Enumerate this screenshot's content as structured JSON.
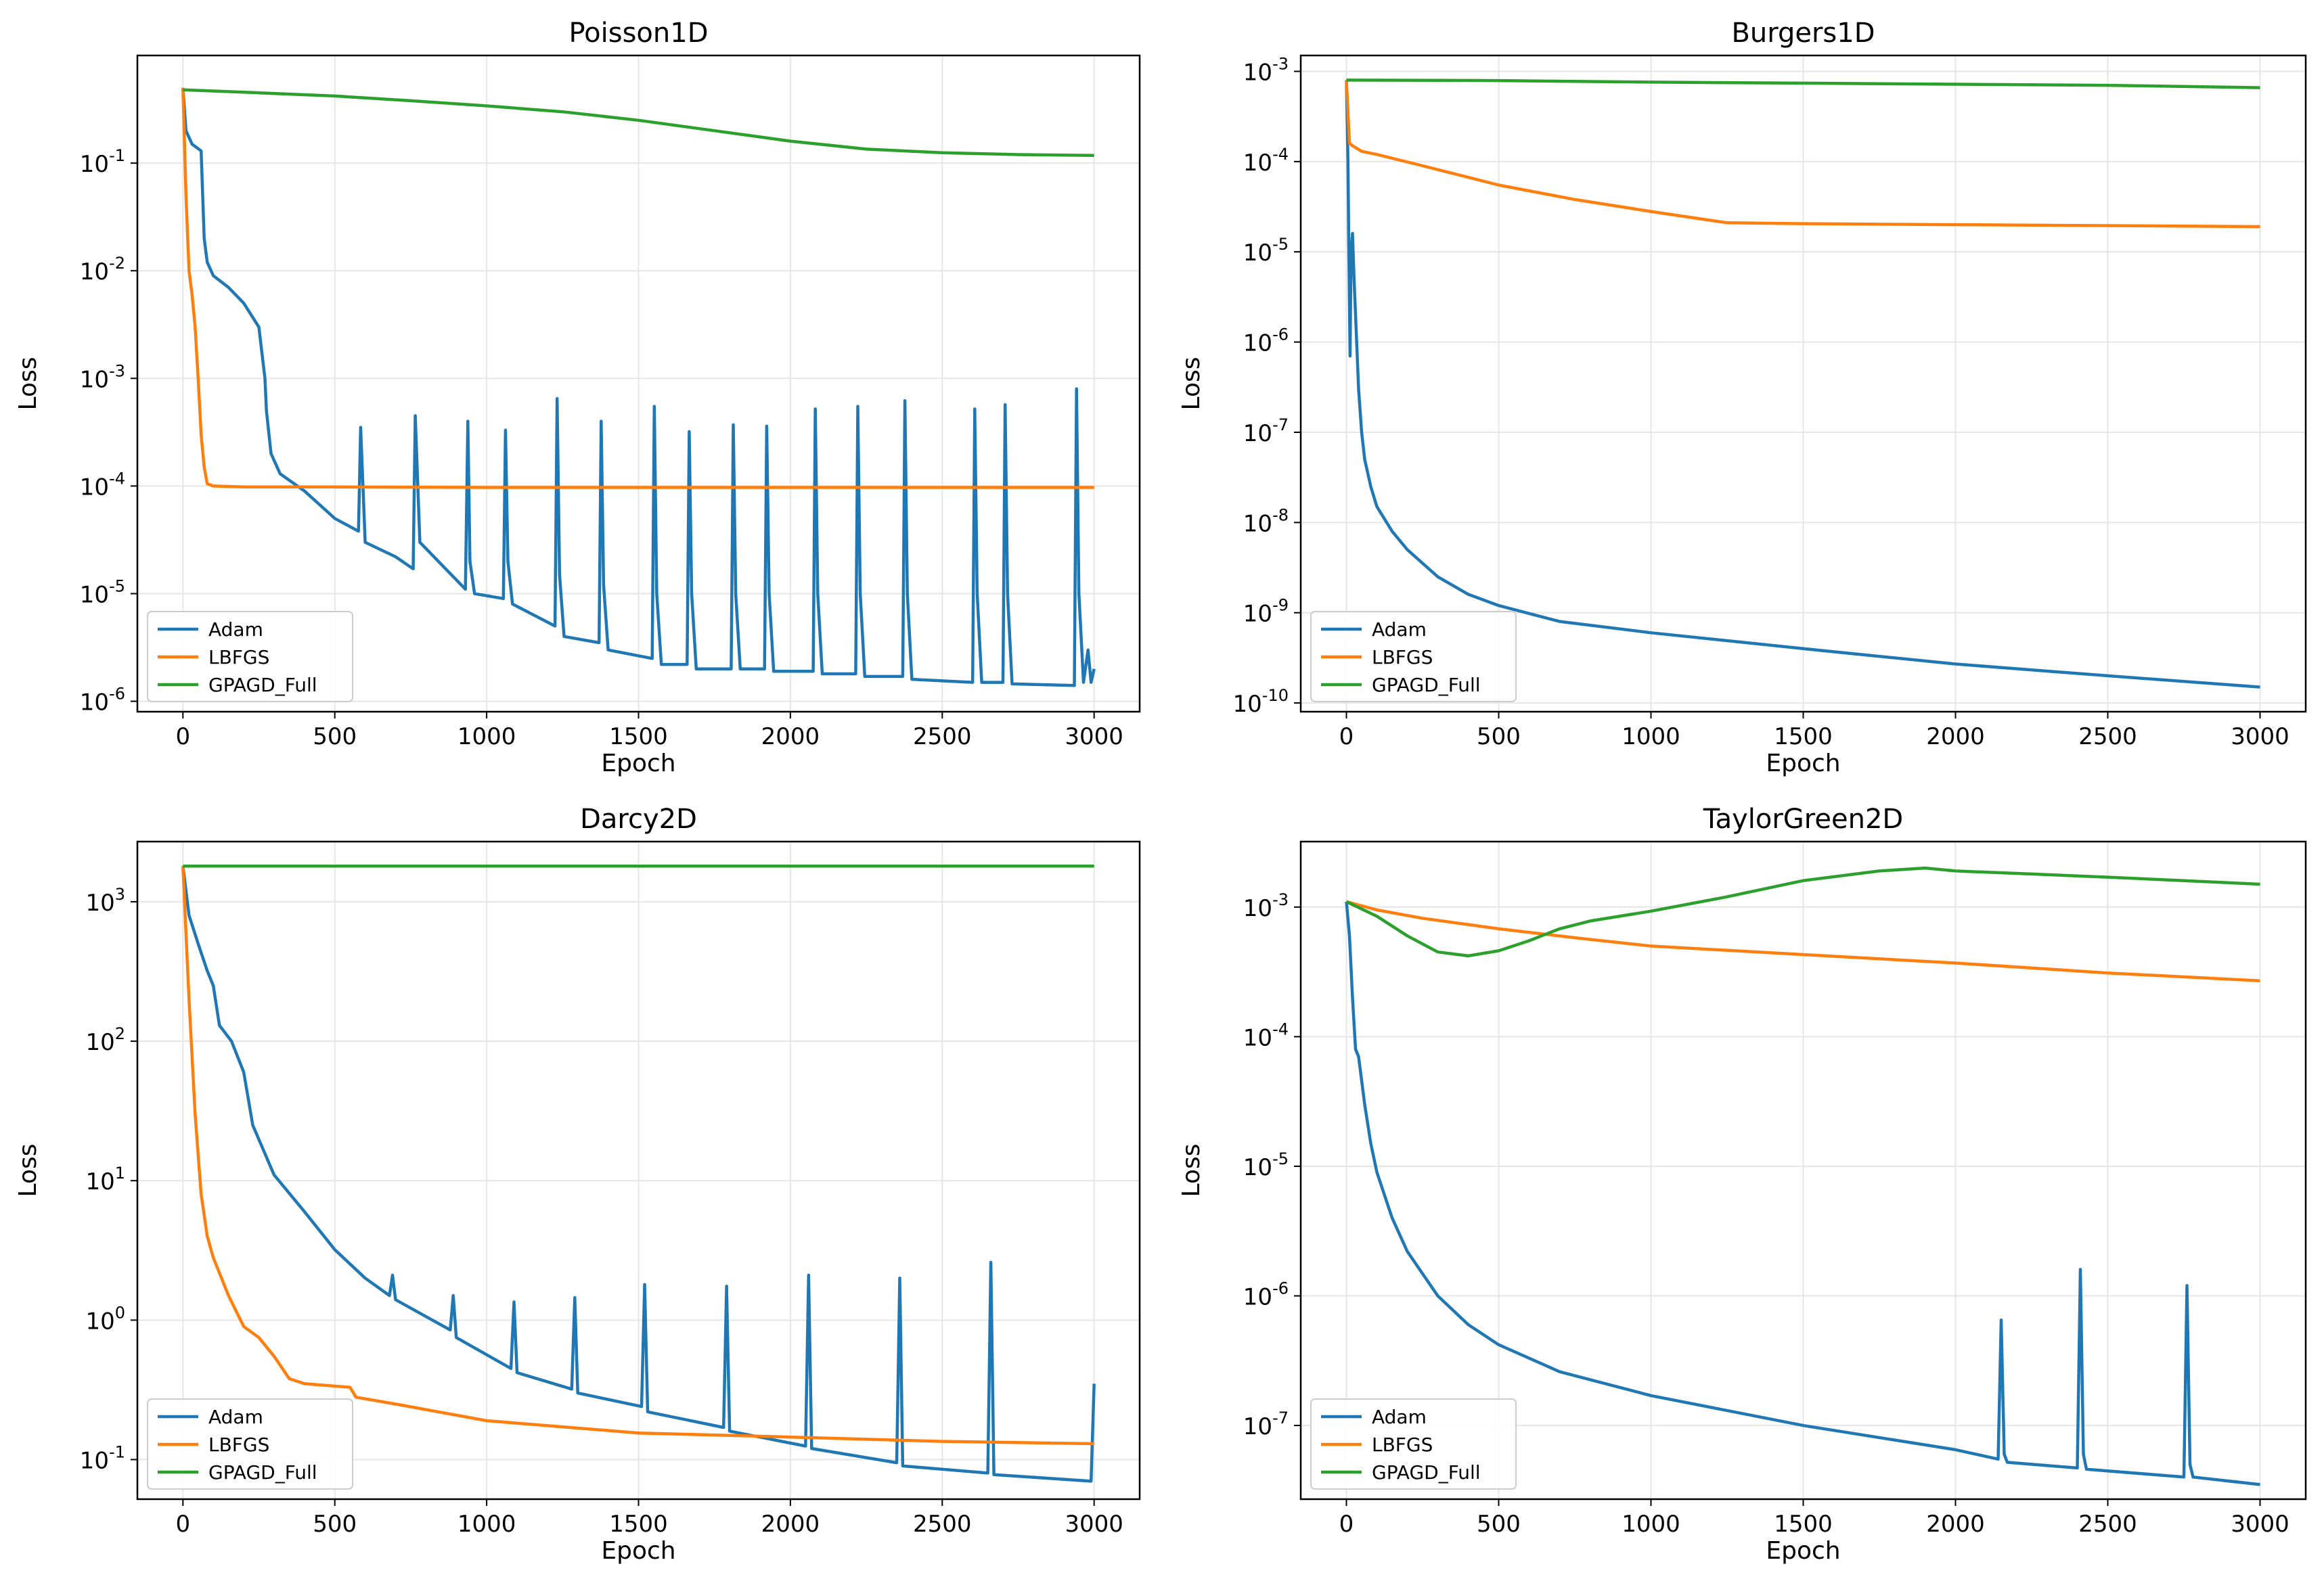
{
  "colors": {
    "adam": "#1f77b4",
    "lbfgs": "#ff7f0e",
    "gpagd": "#2ca02c",
    "grid": "#e6e6e6",
    "axis": "#000000"
  },
  "chart_data": [
    {
      "type": "line",
      "title": "Poisson1D",
      "xlabel": "Epoch",
      "ylabel": "Loss",
      "yscale": "log",
      "xlim": [
        -150,
        3150
      ],
      "ylim": [
        8e-07,
        1.0
      ],
      "xticks": [
        0,
        500,
        1000,
        1500,
        2000,
        2500,
        3000
      ],
      "yticks": [
        {
          "v": 1e-06,
          "e": "-6"
        },
        {
          "v": 1e-05,
          "e": "-5"
        },
        {
          "v": 0.0001,
          "e": "-4"
        },
        {
          "v": 0.001,
          "e": "-3"
        },
        {
          "v": 0.01,
          "e": "-2"
        },
        {
          "v": 0.1,
          "e": "-1"
        }
      ],
      "grid": true,
      "legend": "lower-left",
      "series": [
        {
          "name": "Adam",
          "color_key": "adam",
          "x": [
            0,
            10,
            30,
            60,
            70,
            80,
            100,
            150,
            200,
            250,
            270,
            275,
            290,
            320,
            400,
            500,
            578,
            585,
            600,
            700,
            758,
            765,
            780,
            930,
            938,
            945,
            960,
            1055,
            1062,
            1070,
            1085,
            1225,
            1232,
            1240,
            1255,
            1370,
            1377,
            1385,
            1400,
            1545,
            1552,
            1560,
            1575,
            1660,
            1667,
            1675,
            1690,
            1805,
            1812,
            1820,
            1835,
            1915,
            1922,
            1930,
            1945,
            2075,
            2082,
            2090,
            2105,
            2215,
            2222,
            2230,
            2245,
            2370,
            2377,
            2385,
            2400,
            2600,
            2607,
            2615,
            2630,
            2700,
            2707,
            2715,
            2730,
            2935,
            2942,
            2950,
            2965,
            2980,
            2990,
            3000
          ],
          "y": [
            0.5,
            0.2,
            0.15,
            0.13,
            0.02,
            0.012,
            0.009,
            0.007,
            0.005,
            0.003,
            0.001,
            0.0005,
            0.0002,
            0.00013,
            9e-05,
            5e-05,
            3.8e-05,
            0.00035,
            3e-05,
            2.2e-05,
            1.7e-05,
            0.00045,
            3e-05,
            1.1e-05,
            0.0004,
            2e-05,
            1e-05,
            9e-06,
            0.00033,
            2e-05,
            8e-06,
            5e-06,
            0.00065,
            1.5e-05,
            4e-06,
            3.5e-06,
            0.0004,
            1.2e-05,
            3e-06,
            2.5e-06,
            0.00055,
            1e-05,
            2.2e-06,
            2.2e-06,
            0.00032,
            1e-05,
            2e-06,
            2e-06,
            0.00037,
            1e-05,
            2e-06,
            2e-06,
            0.00036,
            1e-05,
            1.9e-06,
            1.9e-06,
            0.00052,
            1e-05,
            1.8e-06,
            1.8e-06,
            0.00055,
            1e-05,
            1.7e-06,
            1.7e-06,
            0.00062,
            1e-05,
            1.6e-06,
            1.5e-06,
            0.00052,
            1e-05,
            1.5e-06,
            1.5e-06,
            0.00057,
            1e-05,
            1.45e-06,
            1.4e-06,
            0.0008,
            1e-05,
            1.5e-06,
            3e-06,
            1.5e-06,
            2e-06
          ]
        },
        {
          "name": "LBFGS",
          "color_key": "lbfgs",
          "x": [
            0,
            10,
            20,
            30,
            40,
            50,
            60,
            70,
            80,
            100,
            200,
            500,
            1000,
            2000,
            3000
          ],
          "y": [
            0.5,
            0.05,
            0.01,
            0.006,
            0.003,
            0.001,
            0.0003,
            0.00015,
            0.000105,
            0.0001,
            9.8e-05,
            9.8e-05,
            9.7e-05,
            9.7e-05,
            9.7e-05
          ]
        },
        {
          "name": "GPAGD_Full",
          "color_key": "gpagd",
          "x": [
            0,
            250,
            500,
            750,
            1000,
            1250,
            1500,
            1750,
            2000,
            2250,
            2500,
            2750,
            3000
          ],
          "y": [
            0.48,
            0.45,
            0.42,
            0.38,
            0.34,
            0.3,
            0.25,
            0.2,
            0.16,
            0.135,
            0.125,
            0.12,
            0.118
          ]
        }
      ]
    },
    {
      "type": "line",
      "title": "Burgers1D",
      "xlabel": "Epoch",
      "ylabel": "Loss",
      "yscale": "log",
      "xlim": [
        -150,
        3150
      ],
      "ylim": [
        8e-11,
        0.0015
      ],
      "xticks": [
        0,
        500,
        1000,
        1500,
        2000,
        2500,
        3000
      ],
      "yticks": [
        {
          "v": 1e-10,
          "e": "-10"
        },
        {
          "v": 1e-09,
          "e": "-9"
        },
        {
          "v": 1e-08,
          "e": "-8"
        },
        {
          "v": 1e-07,
          "e": "-7"
        },
        {
          "v": 1e-06,
          "e": "-6"
        },
        {
          "v": 1e-05,
          "e": "-5"
        },
        {
          "v": 0.0001,
          "e": "-4"
        },
        {
          "v": 0.001,
          "e": "-3"
        }
      ],
      "grid": true,
      "legend": "lower-left",
      "series": [
        {
          "name": "Adam",
          "color_key": "adam",
          "x": [
            0,
            5,
            8,
            12,
            15,
            20,
            25,
            30,
            40,
            50,
            60,
            80,
            100,
            150,
            200,
            300,
            400,
            500,
            700,
            1000,
            1500,
            2000,
            2500,
            3000
          ],
          "y": [
            0.0008,
            0.0001,
            1e-05,
            7e-07,
            1e-05,
            1.6e-05,
            5e-06,
            2e-06,
            3e-07,
            1e-07,
            5e-08,
            2.5e-08,
            1.5e-08,
            8e-09,
            5e-09,
            2.5e-09,
            1.6e-09,
            1.2e-09,
            8e-10,
            6e-10,
            4e-10,
            2.7e-10,
            2e-10,
            1.5e-10
          ]
        },
        {
          "name": "LBFGS",
          "color_key": "lbfgs",
          "x": [
            0,
            10,
            20,
            50,
            100,
            250,
            500,
            750,
            1000,
            1250,
            1500,
            2000,
            2500,
            3000
          ],
          "y": [
            0.0008,
            0.00016,
            0.00015,
            0.00013,
            0.00012,
            9e-05,
            5.5e-05,
            3.8e-05,
            2.8e-05,
            2.1e-05,
            2.05e-05,
            2e-05,
            1.95e-05,
            1.9e-05
          ]
        },
        {
          "name": "GPAGD_Full",
          "color_key": "gpagd",
          "x": [
            0,
            500,
            1000,
            1500,
            2000,
            2500,
            3000
          ],
          "y": [
            0.0008,
            0.00079,
            0.00076,
            0.00074,
            0.00072,
            0.0007,
            0.00066
          ]
        }
      ]
    },
    {
      "type": "line",
      "title": "Darcy2D",
      "xlabel": "Epoch",
      "ylabel": "Loss",
      "yscale": "log",
      "xlim": [
        -150,
        3150
      ],
      "ylim": [
        0.052,
        2700
      ],
      "xticks": [
        0,
        500,
        1000,
        1500,
        2000,
        2500,
        3000
      ],
      "yticks": [
        {
          "v": 0.1,
          "e": "-1"
        },
        {
          "v": 1,
          "e": "0"
        },
        {
          "v": 10,
          "e": "1"
        },
        {
          "v": 100,
          "e": "2"
        },
        {
          "v": 1000,
          "e": "3"
        }
      ],
      "grid": true,
      "legend": "lower-left",
      "series": [
        {
          "name": "Adam",
          "color_key": "adam",
          "x": [
            0,
            20,
            50,
            80,
            100,
            120,
            160,
            200,
            230,
            300,
            400,
            500,
            600,
            680,
            690,
            700,
            880,
            890,
            900,
            1080,
            1090,
            1100,
            1280,
            1290,
            1300,
            1510,
            1520,
            1530,
            1780,
            1790,
            1800,
            2050,
            2060,
            2070,
            2350,
            2360,
            2370,
            2650,
            2660,
            2670,
            2990,
            3000
          ],
          "y": [
            1800,
            800,
            500,
            320,
            250,
            130,
            100,
            60,
            25,
            11,
            6,
            3.2,
            2.0,
            1.5,
            2.1,
            1.4,
            0.85,
            1.5,
            0.75,
            0.45,
            1.35,
            0.42,
            0.32,
            1.45,
            0.3,
            0.24,
            1.8,
            0.22,
            0.17,
            1.75,
            0.16,
            0.125,
            2.1,
            0.12,
            0.095,
            2.0,
            0.09,
            0.08,
            2.6,
            0.078,
            0.07,
            0.35
          ]
        },
        {
          "name": "LBFGS",
          "color_key": "lbfgs",
          "x": [
            0,
            20,
            40,
            60,
            80,
            100,
            150,
            200,
            250,
            300,
            350,
            400,
            550,
            570,
            700,
            1000,
            1500,
            2000,
            2500,
            3000
          ],
          "y": [
            1800,
            200,
            30,
            8,
            4,
            2.8,
            1.5,
            0.9,
            0.75,
            0.55,
            0.38,
            0.35,
            0.33,
            0.28,
            0.25,
            0.19,
            0.155,
            0.145,
            0.135,
            0.13
          ]
        },
        {
          "name": "GPAGD_Full",
          "color_key": "gpagd",
          "x": [
            0,
            1000,
            2000,
            3000
          ],
          "y": [
            1800,
            1800,
            1800,
            1800
          ]
        }
      ]
    },
    {
      "type": "line",
      "title": "TaylorGreen2D",
      "xlabel": "Epoch",
      "ylabel": "Loss",
      "yscale": "log",
      "xlim": [
        -150,
        3150
      ],
      "ylim": [
        2.7e-08,
        0.0032
      ],
      "xticks": [
        0,
        500,
        1000,
        1500,
        2000,
        2500,
        3000
      ],
      "yticks": [
        {
          "v": 1e-07,
          "e": "-7"
        },
        {
          "v": 1e-06,
          "e": "-6"
        },
        {
          "v": 1e-05,
          "e": "-5"
        },
        {
          "v": 0.0001,
          "e": "-4"
        },
        {
          "v": 0.001,
          "e": "-3"
        }
      ],
      "grid": true,
      "legend": "lower-left",
      "series": [
        {
          "name": "Adam",
          "color_key": "adam",
          "x": [
            0,
            10,
            20,
            30,
            40,
            60,
            80,
            100,
            150,
            200,
            300,
            400,
            500,
            700,
            1000,
            1500,
            2000,
            2140,
            2150,
            2160,
            2170,
            2400,
            2410,
            2420,
            2430,
            2750,
            2760,
            2770,
            2780,
            3000
          ],
          "y": [
            0.0011,
            0.0006,
            0.0002,
            8e-05,
            7e-05,
            3e-05,
            1.5e-05,
            9e-06,
            4e-06,
            2.2e-06,
            1e-06,
            6e-07,
            4.2e-07,
            2.6e-07,
            1.7e-07,
            1e-07,
            6.5e-08,
            5.5e-08,
            6.5e-07,
            6e-08,
            5.2e-08,
            4.7e-08,
            1.6e-06,
            6e-08,
            4.6e-08,
            4e-08,
            1.2e-06,
            5e-08,
            4e-08,
            3.5e-08
          ]
        },
        {
          "name": "LBFGS",
          "color_key": "lbfgs",
          "x": [
            0,
            100,
            250,
            500,
            750,
            1000,
            1500,
            2000,
            2500,
            3000
          ],
          "y": [
            0.0011,
            0.00095,
            0.00082,
            0.00068,
            0.00058,
            0.0005,
            0.00043,
            0.00037,
            0.00031,
            0.00027
          ]
        },
        {
          "name": "GPAGD_Full",
          "color_key": "gpagd",
          "x": [
            0,
            100,
            200,
            300,
            400,
            500,
            600,
            700,
            800,
            1000,
            1250,
            1500,
            1750,
            1900,
            2000,
            2250,
            2500,
            2750,
            3000
          ],
          "y": [
            0.0011,
            0.00085,
            0.0006,
            0.00045,
            0.00042,
            0.00046,
            0.00055,
            0.00068,
            0.00078,
            0.00093,
            0.0012,
            0.0016,
            0.0019,
            0.002,
            0.0019,
            0.0018,
            0.0017,
            0.0016,
            0.0015
          ]
        }
      ]
    }
  ]
}
